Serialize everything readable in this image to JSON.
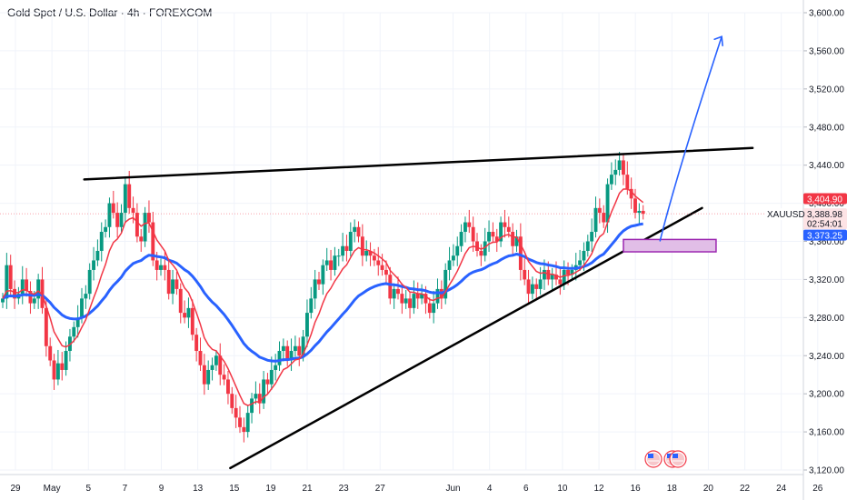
{
  "header": {
    "title": "Gold Spot / U.S. Dollar · 4h · FOREXCOM"
  },
  "symbol": "XAUUSD",
  "badges": {
    "ema_fast": "3,404.90",
    "last": "3,388.98",
    "countdown": "02:54:01",
    "ema_slow": "3,373.25"
  },
  "colors": {
    "up": "#089981",
    "down": "#f23645",
    "ema_fast": "#f23645",
    "ema_slow": "#2962ff",
    "trendline": "#000000",
    "projection": "#2962ff",
    "zone_fill": "#e1bee7",
    "zone_border": "#9c27b0"
  },
  "icons": [
    "us-flag-icon",
    "us-flag-icon",
    "us-flag-icon"
  ],
  "chart_data": {
    "type": "candlestick",
    "title": "Gold Spot / U.S. Dollar · 4h · FOREXCOM",
    "y_ticks": [
      "3,120.00",
      "3,160.00",
      "3,200.00",
      "3,240.00",
      "3,280.00",
      "3,320.00",
      "3,360.00",
      "3,400.00",
      "3,440.00",
      "3,480.00",
      "3,520.00",
      "3,560.00",
      "3,600.00"
    ],
    "ylim": [
      3120,
      3600
    ],
    "x_ticks": [
      {
        "label": "29",
        "bar": 0
      },
      {
        "label": "May",
        "bar": 8
      },
      {
        "label": "5",
        "bar": 16
      },
      {
        "label": "7",
        "bar": 24
      },
      {
        "label": "9",
        "bar": 32
      },
      {
        "label": "13",
        "bar": 40
      },
      {
        "label": "15",
        "bar": 48
      },
      {
        "label": "19",
        "bar": 56
      },
      {
        "label": "21",
        "bar": 64
      },
      {
        "label": "23",
        "bar": 72
      },
      {
        "label": "27",
        "bar": 80
      },
      {
        "label": "Jun",
        "bar": 96
      },
      {
        "label": "4",
        "bar": 104
      },
      {
        "label": "6",
        "bar": 112
      },
      {
        "label": "10",
        "bar": 120
      },
      {
        "label": "12",
        "bar": 128
      },
      {
        "label": "16",
        "bar": 136
      },
      {
        "label": "18",
        "bar": 144
      },
      {
        "label": "20",
        "bar": 152
      },
      {
        "label": "22",
        "bar": 160
      },
      {
        "label": "24",
        "bar": 168
      },
      {
        "label": "26",
        "bar": 176
      }
    ],
    "closes": [
      3300,
      3335,
      3310,
      3300,
      3305,
      3320,
      3308,
      3295,
      3300,
      3320,
      3290,
      3250,
      3235,
      3215,
      3232,
      3225,
      3245,
      3260,
      3270,
      3280,
      3300,
      3305,
      3330,
      3340,
      3350,
      3370,
      3375,
      3400,
      3390,
      3375,
      3390,
      3420,
      3395,
      3390,
      3365,
      3360,
      3390,
      3380,
      3340,
      3330,
      3335,
      3330,
      3305,
      3320,
      3310,
      3285,
      3280,
      3290,
      3262,
      3245,
      3230,
      3210,
      3225,
      3230,
      3240,
      3220,
      3215,
      3200,
      3185,
      3175,
      3165,
      3160,
      3180,
      3195,
      3200,
      3190,
      3215,
      3210,
      3225,
      3230,
      3245,
      3250,
      3235,
      3245,
      3250,
      3240,
      3260,
      3285,
      3300,
      3320,
      3315,
      3335,
      3340,
      3330,
      3345,
      3345,
      3355,
      3350,
      3370,
      3375,
      3365,
      3345,
      3350,
      3345,
      3340,
      3335,
      3330,
      3325,
      3300,
      3310,
      3305,
      3295,
      3300,
      3290,
      3305,
      3300,
      3305,
      3295,
      3285,
      3295,
      3310,
      3300,
      3330,
      3340,
      3345,
      3355,
      3370,
      3380,
      3375,
      3360,
      3350,
      3345,
      3360,
      3370,
      3365,
      3360,
      3380,
      3375,
      3370,
      3355,
      3365,
      3330,
      3320,
      3305,
      3315,
      3310,
      3320,
      3330,
      3320,
      3325,
      3320,
      3315,
      3330,
      3325,
      3330,
      3335,
      3340,
      3350,
      3360,
      3370,
      3395,
      3390,
      3380,
      3420,
      3430,
      3435,
      3445,
      3430,
      3415,
      3405,
      3390,
      3392,
      3388.98
    ],
    "ema_fast": {
      "name": "",
      "last": 3404.9
    },
    "ema_slow": {
      "name": "",
      "last": 3373.25
    },
    "trendlines": [
      {
        "points": [
          {
            "bar": 30,
            "y": 3425
          },
          {
            "bar": 268,
            "y": 3458
          }
        ]
      },
      {
        "points": [
          {
            "bar": 82,
            "y": 3122
          },
          {
            "bar": 250,
            "y": 3395
          }
        ]
      }
    ],
    "projection": {
      "points": [
        {
          "bar": 235,
          "y": 3360
        },
        {
          "bar": 257,
          "y": 3575
        }
      ]
    },
    "zone": {
      "bar_start": 222,
      "bar_end": 255,
      "y_low": 3349,
      "y_high": 3362
    },
    "grid": true
  }
}
